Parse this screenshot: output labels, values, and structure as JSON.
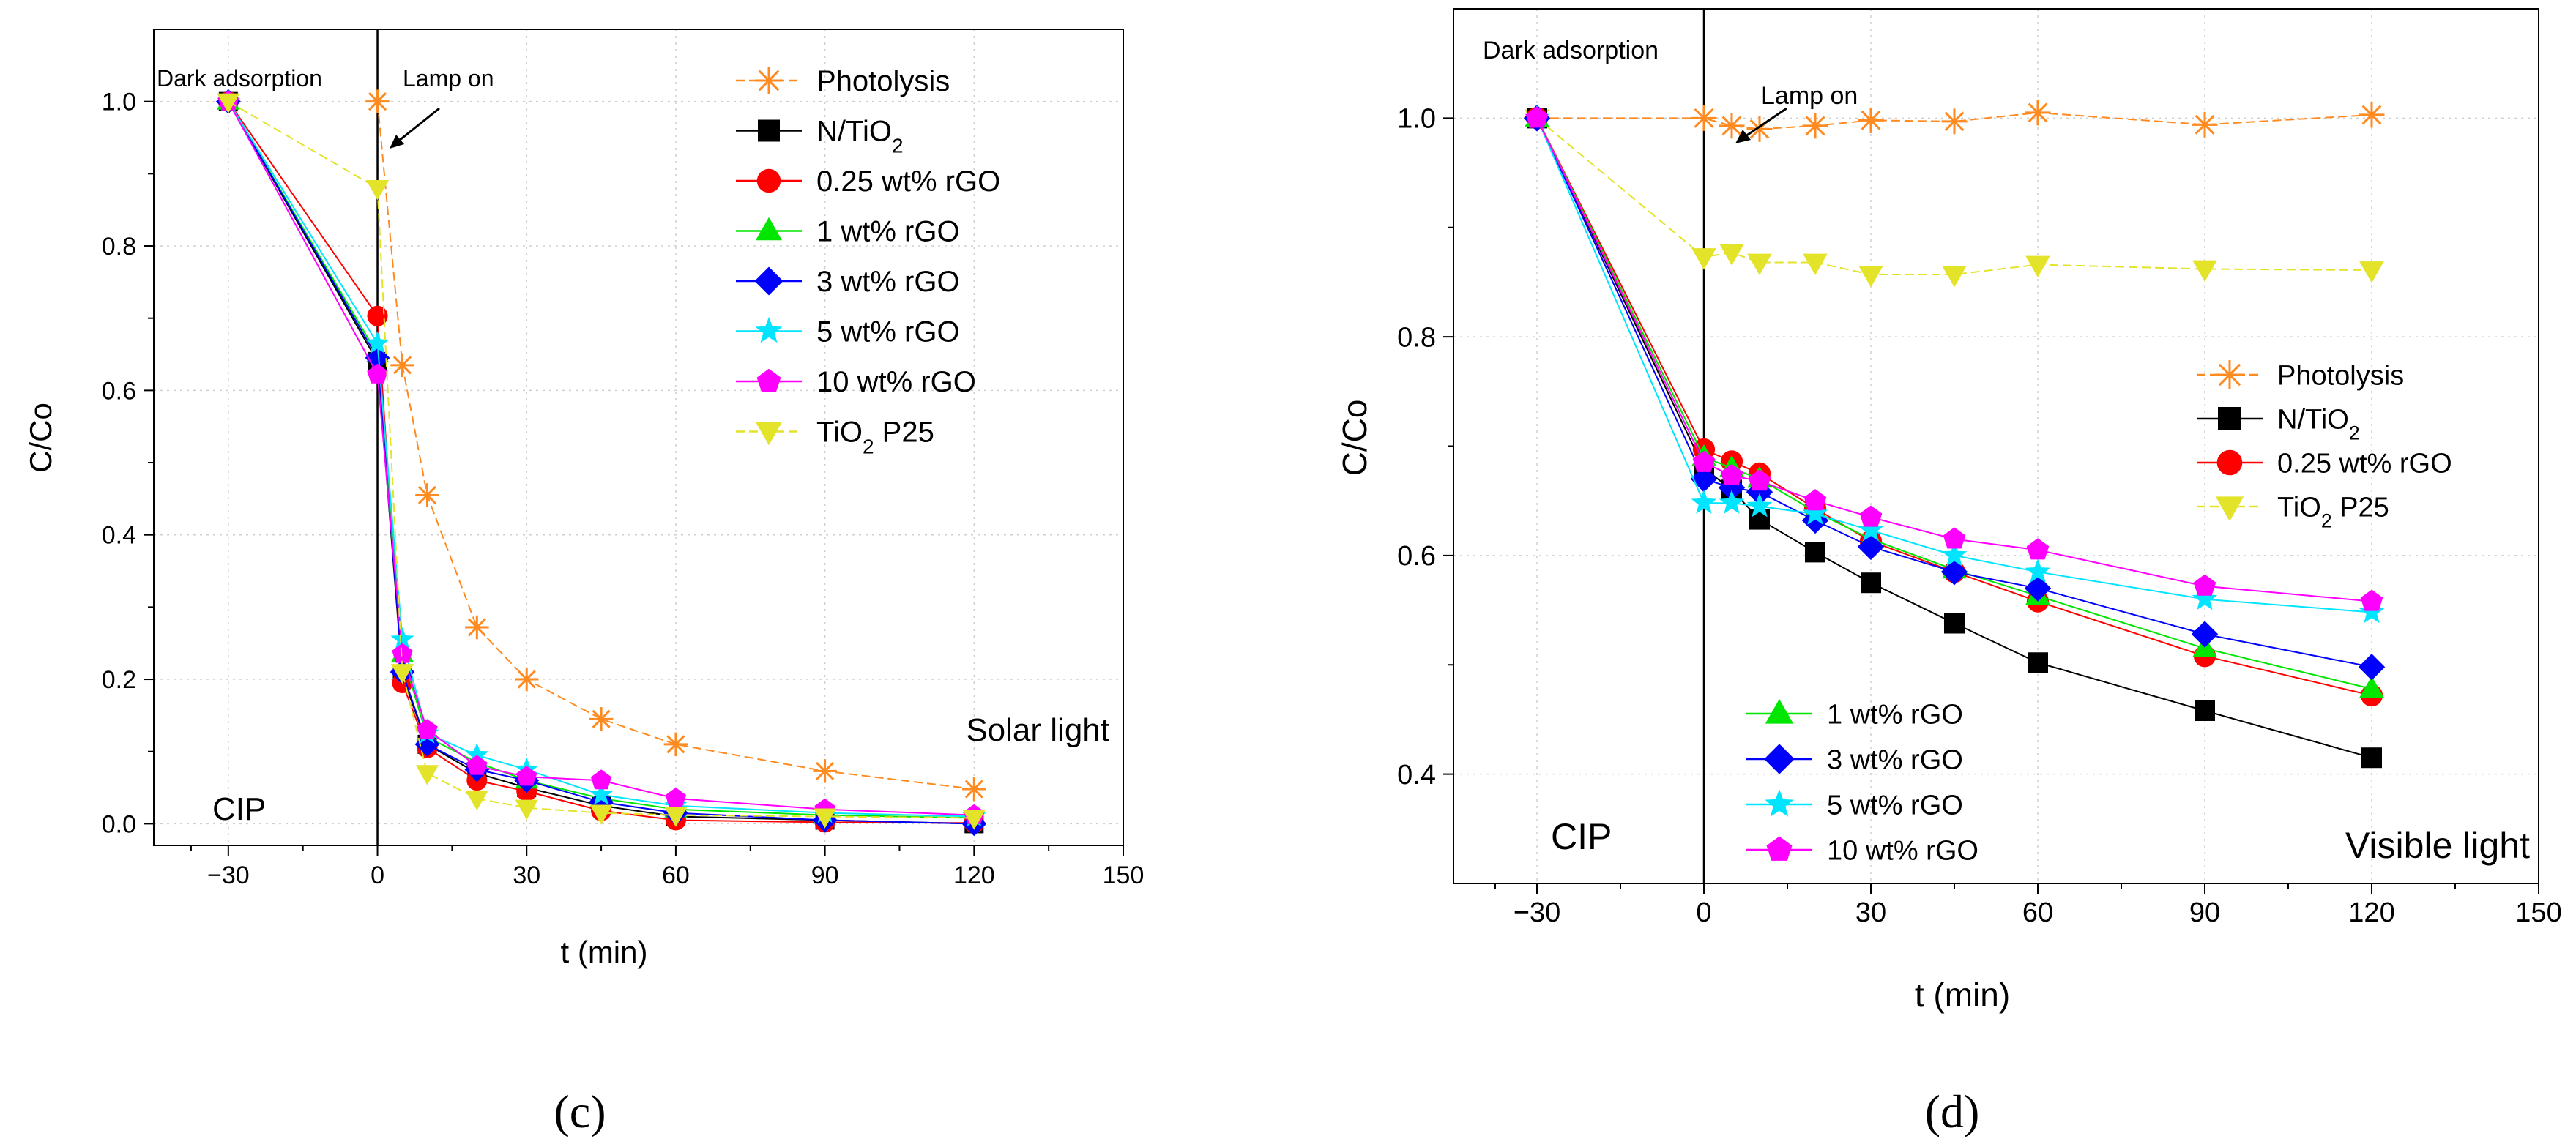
{
  "figure": {
    "series_colors": {
      "Photolysis": "#ff8a1f",
      "N/TiO2": "#000000",
      "0.25 wt% rGO": "#ff0000",
      "1 wt% rGO": "#00e600",
      "3 wt% rGO": "#0000ff",
      "5 wt% rGO": "#00e5ff",
      "10 wt% rGO": "#ff00ff",
      "TiO2 P25": "#e3e32a"
    },
    "series_markers": {
      "Photolysis": "asterisk",
      "N/TiO2": "square",
      "0.25 wt% rGO": "circle",
      "1 wt% rGO": "triangle-up",
      "3 wt% rGO": "diamond",
      "5 wt% rGO": "star",
      "10 wt% rGO": "pentagon",
      "TiO2 P25": "triangle-down"
    }
  },
  "chart_data": [
    {
      "panel_label": "(c)",
      "type": "line",
      "title": "",
      "xlabel": "t (min)",
      "ylabel": "C/Co",
      "xlim": [
        -45,
        150
      ],
      "ylim": [
        -0.03,
        1.1
      ],
      "xticks": [
        -30,
        0,
        30,
        60,
        90,
        120,
        150
      ],
      "yticks": [
        0.0,
        0.2,
        0.4,
        0.6,
        0.8,
        1.0
      ],
      "xticklabels": [
        "−30",
        "0",
        "30",
        "60",
        "90",
        "120",
        "150"
      ],
      "yticklabels": [
        "0.0",
        "0.2",
        "0.4",
        "0.6",
        "0.8",
        "1.0"
      ],
      "grid": true,
      "annotations": {
        "dark": "Dark adsorption",
        "lamp": "Lamp on",
        "compound": "CIP",
        "light": "Solar light"
      },
      "legend_position": "top-right",
      "legend_entries": [
        "Photolysis",
        "N/TiO2",
        "0.25 wt% rGO",
        "1 wt% rGO",
        "3 wt% rGO",
        "5 wt% rGO",
        "10 wt% rGO",
        "TiO2 P25"
      ],
      "series": [
        {
          "name": "Photolysis",
          "x": [
            0,
            5,
            10,
            20,
            30,
            45,
            60,
            90,
            120
          ],
          "values": [
            1.0,
            0.635,
            0.455,
            0.272,
            0.2,
            0.145,
            0.11,
            0.073,
            0.048
          ]
        },
        {
          "name": "N/TiO2",
          "x": [
            -30,
            0,
            5,
            10,
            20,
            30,
            45,
            60,
            90,
            120
          ],
          "values": [
            1.0,
            0.64,
            0.205,
            0.11,
            0.07,
            0.05,
            0.025,
            0.01,
            0.005,
            0.0
          ]
        },
        {
          "name": "0.25 wt% rGO",
          "x": [
            -30,
            0,
            5,
            10,
            20,
            30,
            45,
            60,
            90,
            120
          ],
          "values": [
            1.0,
            0.703,
            0.195,
            0.105,
            0.06,
            0.045,
            0.018,
            0.005,
            0.002,
            0.001
          ]
        },
        {
          "name": "1 wt% rGO",
          "x": [
            -30,
            0,
            5,
            10,
            20,
            30,
            45,
            60,
            90,
            120
          ],
          "values": [
            1.0,
            0.65,
            0.235,
            0.12,
            0.085,
            0.06,
            0.035,
            0.02,
            0.012,
            0.008
          ]
        },
        {
          "name": "3 wt% rGO",
          "x": [
            -30,
            0,
            5,
            10,
            20,
            30,
            45,
            60,
            90,
            120
          ],
          "values": [
            1.0,
            0.645,
            0.21,
            0.11,
            0.075,
            0.06,
            0.03,
            0.015,
            0.005,
            0.0
          ]
        },
        {
          "name": "5 wt% rGO",
          "x": [
            -30,
            0,
            5,
            10,
            20,
            30,
            45,
            60,
            90,
            120
          ],
          "values": [
            1.0,
            0.665,
            0.255,
            0.125,
            0.095,
            0.075,
            0.04,
            0.025,
            0.015,
            0.01
          ]
        },
        {
          "name": "10 wt% rGO",
          "x": [
            -30,
            0,
            5,
            10,
            20,
            30,
            45,
            60,
            90,
            120
          ],
          "values": [
            1.0,
            0.622,
            0.235,
            0.13,
            0.08,
            0.065,
            0.06,
            0.035,
            0.02,
            0.012
          ]
        },
        {
          "name": "TiO2 P25",
          "x": [
            -30,
            0,
            5,
            10,
            20,
            30,
            45,
            60,
            90,
            120
          ],
          "values": [
            1.0,
            0.88,
            0.21,
            0.07,
            0.035,
            0.022,
            0.015,
            0.012,
            0.01,
            0.008
          ]
        }
      ]
    },
    {
      "panel_label": "(d)",
      "type": "line",
      "title": "",
      "xlabel": "t (min)",
      "ylabel": "C/Co",
      "xlim": [
        -45,
        150
      ],
      "ylim": [
        0.3,
        1.1
      ],
      "xticks": [
        -30,
        0,
        30,
        60,
        90,
        120,
        150
      ],
      "yticks": [
        0.4,
        0.6,
        0.8,
        1.0
      ],
      "xticklabels": [
        "−30",
        "0",
        "30",
        "60",
        "90",
        "120",
        "150"
      ],
      "yticklabels": [
        "0.4",
        "0.6",
        "0.8",
        "1.0"
      ],
      "grid": true,
      "annotations": {
        "dark": "Dark adsorption",
        "lamp": "Lamp on",
        "compound": "CIP",
        "light": "Visible light"
      },
      "legend_position": "center-right",
      "legend_entries": [
        "Photolysis",
        "N/TiO2",
        "0.25 wt% rGO",
        "TiO2 P25"
      ],
      "legend2_position": "bottom-left",
      "legend2_entries": [
        "1 wt% rGO",
        "3 wt% rGO",
        "5 wt% rGO",
        "10 wt% rGO"
      ],
      "series": [
        {
          "name": "Photolysis",
          "x": [
            -30,
            0,
            5,
            10,
            20,
            30,
            45,
            60,
            90,
            120
          ],
          "values": [
            1.0,
            1.0,
            0.993,
            0.99,
            0.993,
            0.998,
            0.997,
            1.005,
            0.994,
            1.003
          ]
        },
        {
          "name": "TiO2 P25",
          "x": [
            -30,
            0,
            5,
            10,
            20,
            30,
            45,
            60,
            90,
            120
          ],
          "values": [
            1.0,
            0.873,
            0.877,
            0.868,
            0.868,
            0.857,
            0.857,
            0.866,
            0.862,
            0.861
          ]
        },
        {
          "name": "N/TiO2",
          "x": [
            -30,
            0,
            5,
            10,
            20,
            30,
            45,
            60,
            90,
            120
          ],
          "values": [
            1.0,
            0.68,
            0.66,
            0.633,
            0.603,
            0.575,
            0.538,
            0.502,
            0.458,
            0.415
          ]
        },
        {
          "name": "0.25 wt% rGO",
          "x": [
            -30,
            0,
            5,
            10,
            20,
            30,
            45,
            60,
            90,
            120
          ],
          "values": [
            1.0,
            0.697,
            0.686,
            0.675,
            0.643,
            0.613,
            0.585,
            0.558,
            0.508,
            0.472
          ]
        },
        {
          "name": "1 wt% rGO",
          "x": [
            -30,
            0,
            5,
            10,
            20,
            30,
            45,
            60,
            90,
            120
          ],
          "values": [
            1.0,
            0.69,
            0.68,
            0.67,
            0.64,
            0.615,
            0.587,
            0.563,
            0.515,
            0.478
          ]
        },
        {
          "name": "3 wt% rGO",
          "x": [
            -30,
            0,
            5,
            10,
            20,
            30,
            45,
            60,
            90,
            120
          ],
          "values": [
            1.0,
            0.67,
            0.662,
            0.658,
            0.632,
            0.608,
            0.585,
            0.57,
            0.528,
            0.498
          ]
        },
        {
          "name": "5 wt% rGO",
          "x": [
            -30,
            0,
            5,
            10,
            20,
            30,
            45,
            60,
            90,
            120
          ],
          "values": [
            1.0,
            0.648,
            0.648,
            0.645,
            0.638,
            0.623,
            0.6,
            0.585,
            0.56,
            0.548
          ]
        },
        {
          "name": "10 wt% rGO",
          "x": [
            -30,
            0,
            5,
            10,
            20,
            30,
            45,
            60,
            90,
            120
          ],
          "values": [
            1.0,
            0.685,
            0.673,
            0.668,
            0.65,
            0.635,
            0.615,
            0.605,
            0.572,
            0.558
          ]
        }
      ]
    }
  ]
}
